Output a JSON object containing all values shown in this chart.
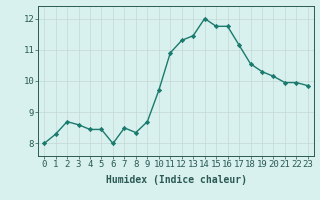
{
  "x": [
    0,
    1,
    2,
    3,
    4,
    5,
    6,
    7,
    8,
    9,
    10,
    11,
    12,
    13,
    14,
    15,
    16,
    17,
    18,
    19,
    20,
    21,
    22,
    23
  ],
  "y": [
    8.0,
    8.3,
    8.7,
    8.6,
    8.45,
    8.45,
    8.0,
    8.5,
    8.35,
    8.7,
    9.7,
    10.9,
    11.3,
    11.45,
    12.0,
    11.75,
    11.75,
    11.15,
    10.55,
    10.3,
    10.15,
    9.95,
    9.95,
    9.85
  ],
  "line_color": "#1a7a6e",
  "marker": "D",
  "marker_size": 2.2,
  "bg_color": "#d8f0ee",
  "grid_color": "#c4d8d4",
  "axis_color": "#2a5a52",
  "xlabel": "Humidex (Indice chaleur)",
  "xlim": [
    -0.5,
    23.5
  ],
  "ylim": [
    7.6,
    12.4
  ],
  "yticks": [
    8,
    9,
    10,
    11,
    12
  ],
  "xticks": [
    0,
    1,
    2,
    3,
    4,
    5,
    6,
    7,
    8,
    9,
    10,
    11,
    12,
    13,
    14,
    15,
    16,
    17,
    18,
    19,
    20,
    21,
    22,
    23
  ],
  "xlabel_fontsize": 7,
  "tick_fontsize": 6.5,
  "tick_color": "#2a5a52",
  "line_width": 1.0
}
